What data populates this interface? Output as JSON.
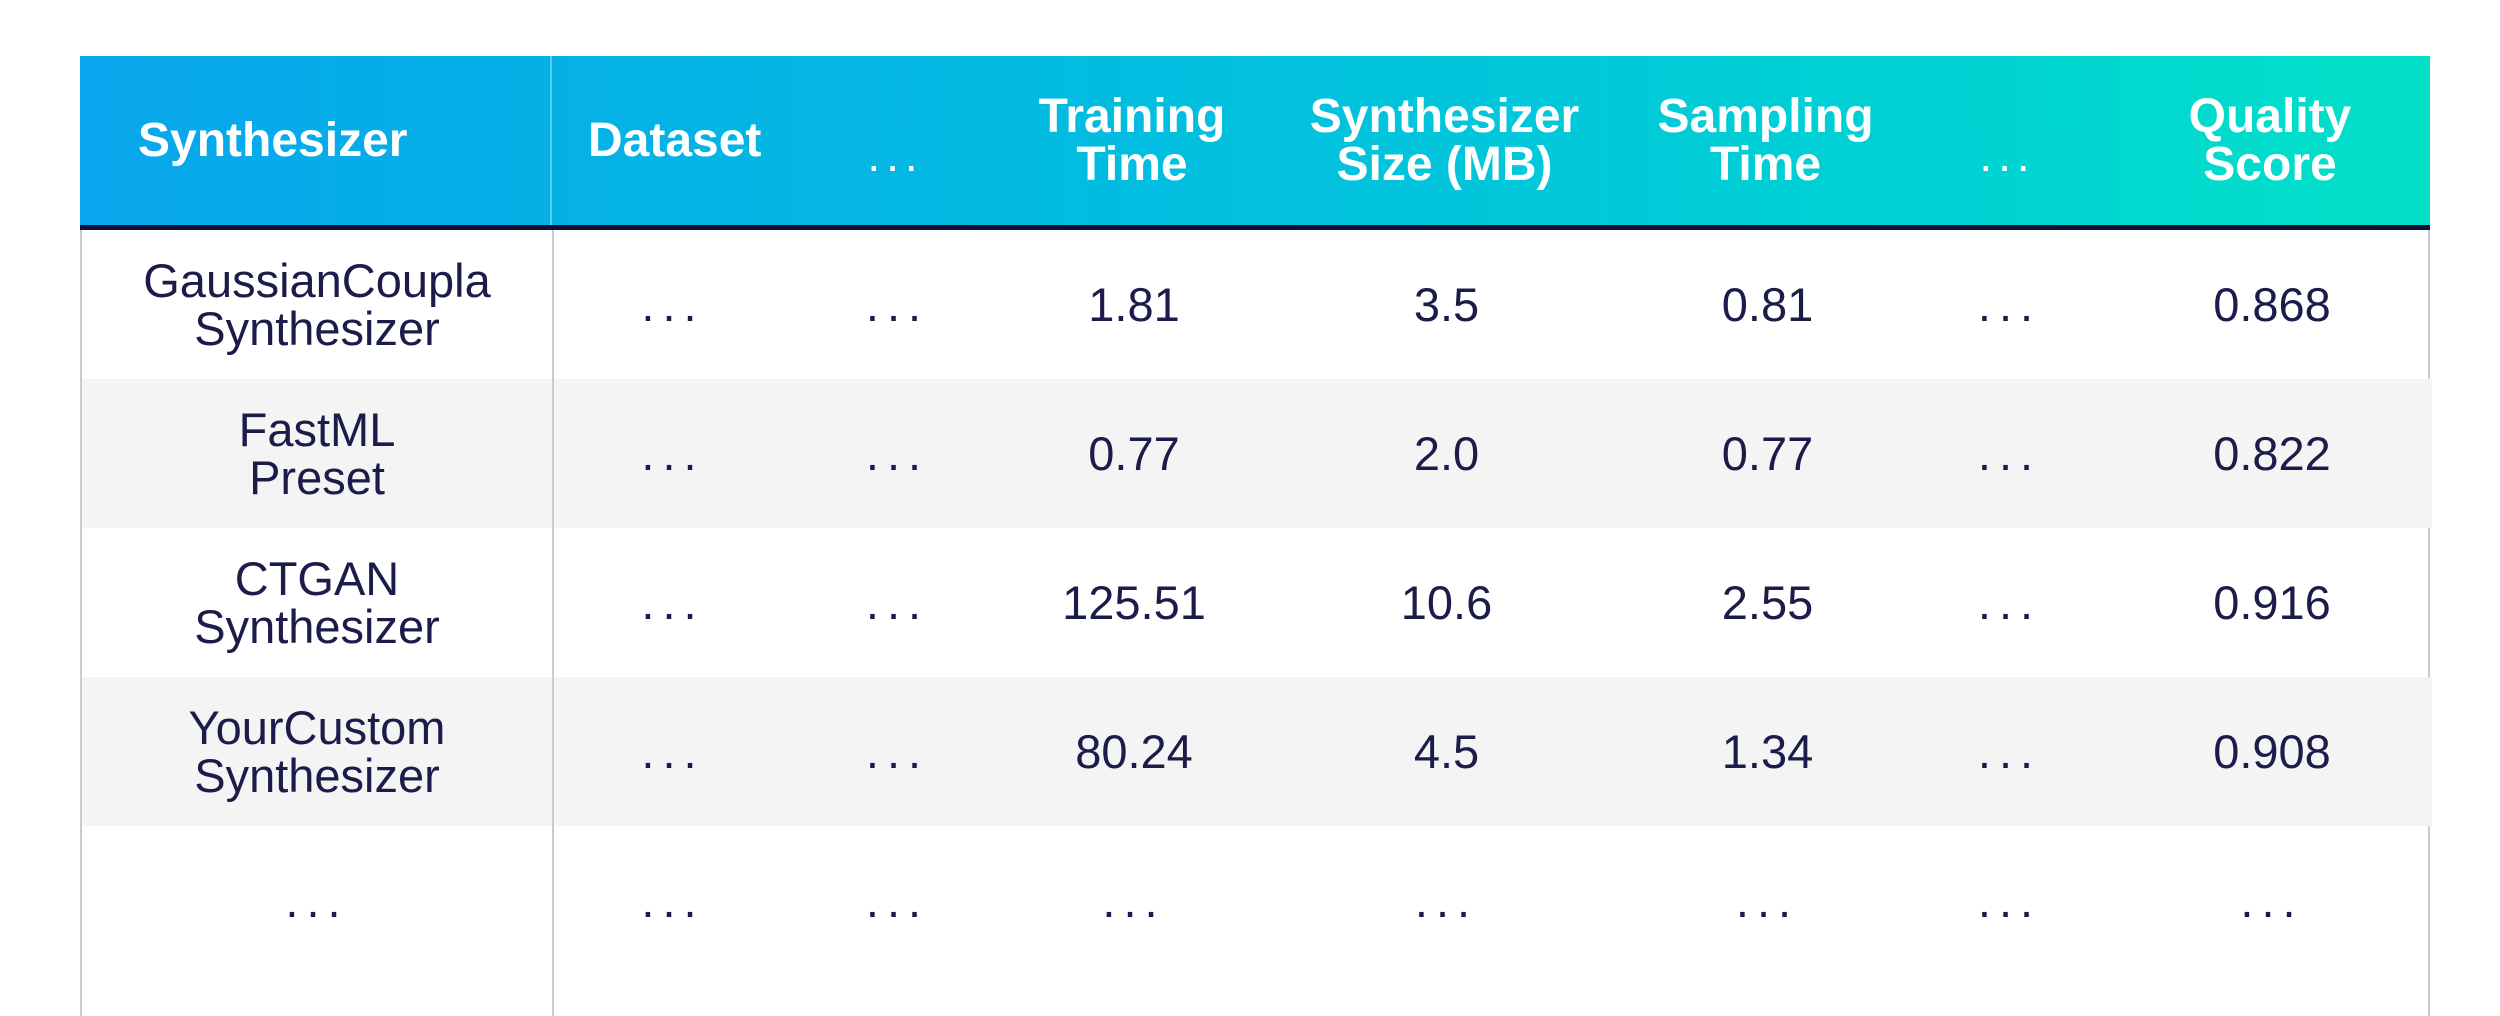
{
  "table": {
    "headers": [
      "Synthesizer",
      "Dataset",
      "...",
      "Training\nTime",
      "Synthesizer\nSize (MB)",
      "Sampling\nTime",
      "...",
      "Quality\nScore"
    ],
    "rows": [
      [
        "GaussianCoupla\nSynthesizer",
        "...",
        "...",
        "1.81",
        "3.5",
        "0.81",
        "...",
        "0.868"
      ],
      [
        "FastML\nPreset",
        "...",
        "...",
        "0.77",
        "2.0",
        "0.77",
        "...",
        "0.822"
      ],
      [
        "CTGAN\nSynthesizer",
        "...",
        "...",
        "125.51",
        "10.6",
        "2.55",
        "...",
        "0.916"
      ],
      [
        "YourCustom\nSynthesizer",
        "...",
        "...",
        "80.24",
        "4.5",
        "1.34",
        "...",
        "0.908"
      ],
      [
        "...",
        "...",
        "...",
        "...",
        "...",
        "...",
        "...",
        "..."
      ]
    ]
  },
  "colors": {
    "header_gradient_start": "#08a6ec",
    "header_gradient_end": "#03e0c8",
    "header_text": "#ffffff",
    "body_text": "#1c1c4a",
    "row_shade": "#f4f4f4",
    "header_rule": "#0c1236",
    "grid_line": "#c8cbd3"
  }
}
